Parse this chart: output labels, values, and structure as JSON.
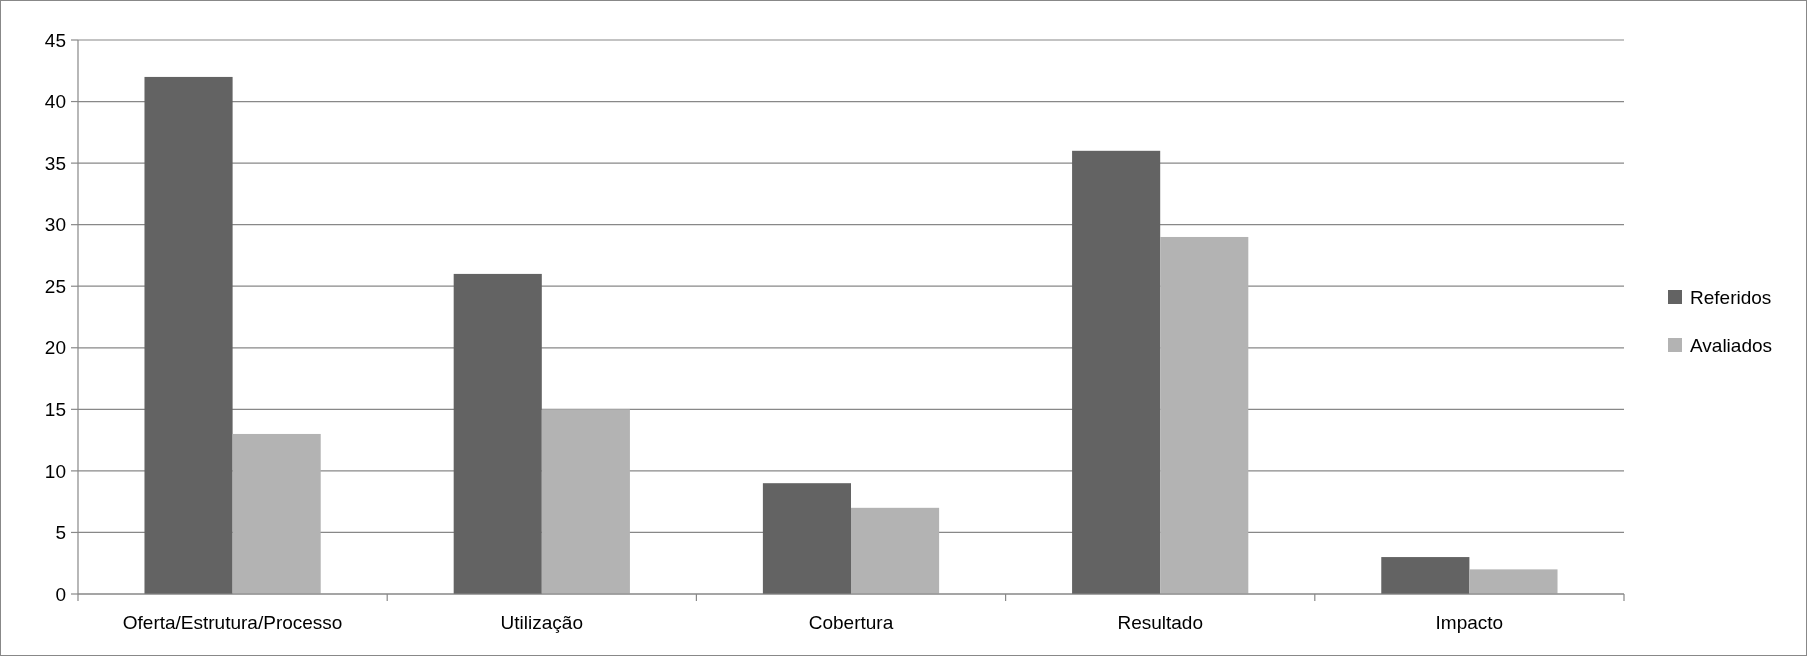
{
  "chart_data": {
    "type": "bar",
    "categories": [
      "Oferta/Estrutura/Processo",
      "Utilização",
      "Cobertura",
      "Resultado",
      "Impacto"
    ],
    "series": [
      {
        "name": "Referidos",
        "color": "#636363",
        "values": [
          42,
          26,
          9,
          36,
          3
        ]
      },
      {
        "name": "Avaliados",
        "color": "#b3b3b3",
        "values": [
          13,
          15,
          7,
          29,
          2
        ]
      }
    ],
    "ylim": [
      0,
      45
    ],
    "yticks": [
      0,
      5,
      10,
      15,
      20,
      25,
      30,
      35,
      40,
      45
    ],
    "grid": "y",
    "legend": "right"
  }
}
